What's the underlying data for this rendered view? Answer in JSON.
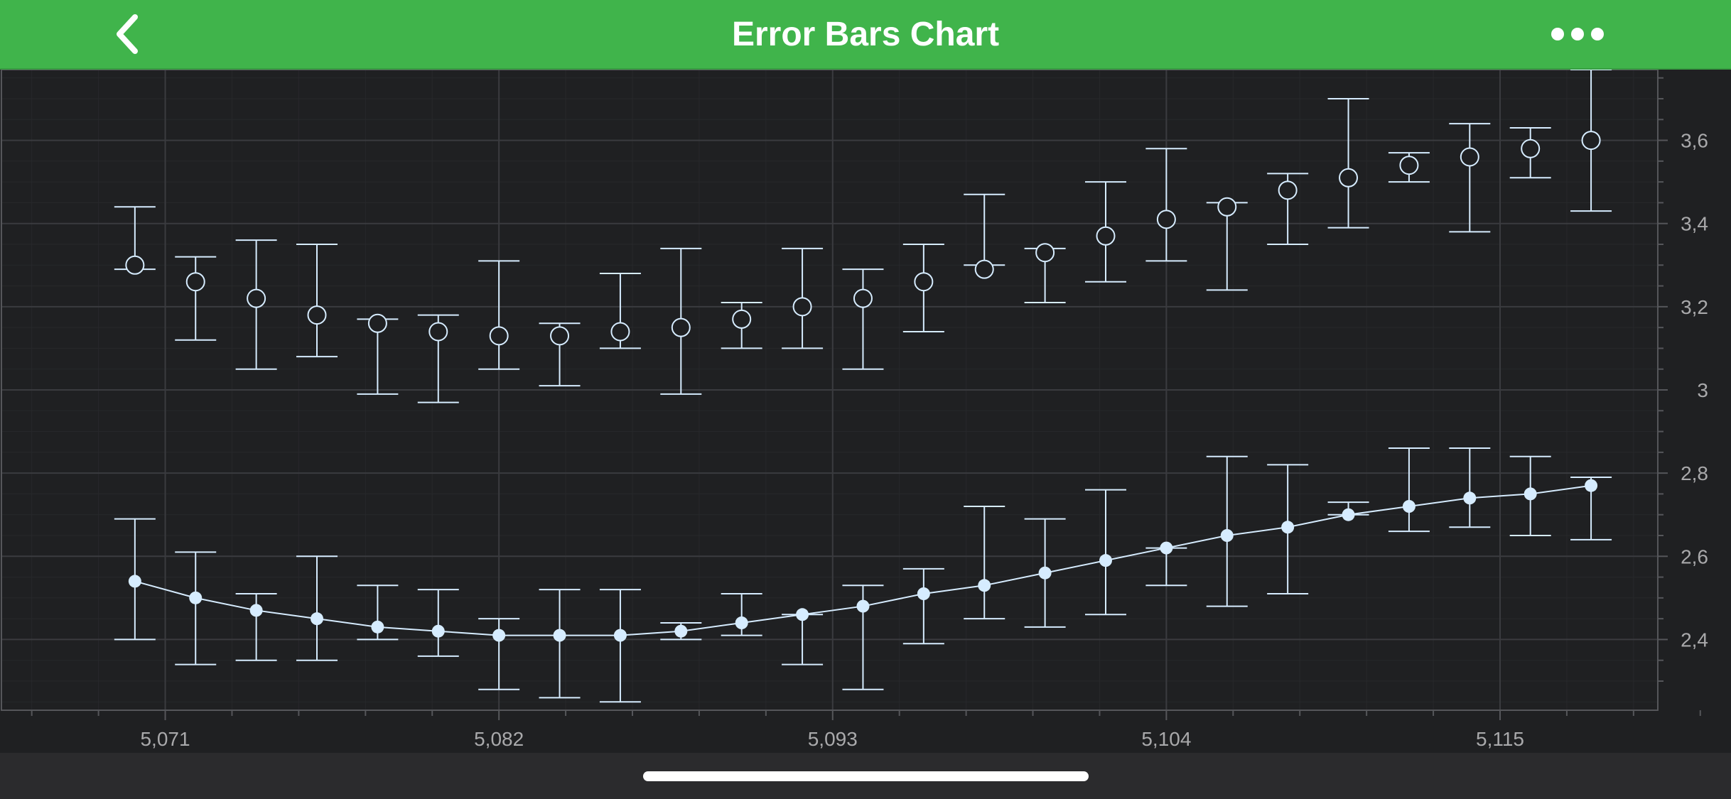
{
  "header": {
    "title": "Error Bars Chart",
    "back_icon": "chevron-left-icon",
    "more_icon": "more-horizontal-icon"
  },
  "colors": {
    "header_bg": "#40b44b",
    "plot_bg": "#1f2022",
    "series": "#d6ecff",
    "tick_label": "#a9a9ab"
  },
  "chart_data": {
    "type": "scatter",
    "title": "",
    "xlabel": "",
    "ylabel": "",
    "xlim": [
      5065.6,
      5120.2
    ],
    "ylim": [
      2.23,
      3.77
    ],
    "x_ticks": [
      5071,
      5082,
      5093,
      5104,
      5115
    ],
    "x_tick_labels": [
      "5,071",
      "5,082",
      "5,093",
      "5,104",
      "5,115"
    ],
    "y_ticks": [
      2.4,
      2.6,
      2.8,
      3.0,
      3.2,
      3.4,
      3.6
    ],
    "y_tick_labels": [
      "2,4",
      "2,6",
      "2,8",
      "3",
      "3,2",
      "3,4",
      "3,6"
    ],
    "y_axis_position": "right",
    "grid": true,
    "x": [
      5070,
      5072,
      5074,
      5076,
      5078,
      5080,
      5082,
      5084,
      5086,
      5088,
      5090,
      5092,
      5094,
      5096,
      5098,
      5100,
      5102,
      5104,
      5106,
      5108,
      5110,
      5112,
      5114,
      5116,
      5118
    ],
    "series": [
      {
        "marker": "open-circle",
        "line": false,
        "y": [
          3.3,
          3.26,
          3.22,
          3.18,
          3.16,
          3.14,
          3.13,
          3.13,
          3.14,
          3.15,
          3.17,
          3.2,
          3.22,
          3.26,
          3.29,
          3.33,
          3.37,
          3.41,
          3.44,
          3.48,
          3.51,
          3.54,
          3.56,
          3.58,
          3.6
        ],
        "high": [
          3.44,
          3.32,
          3.36,
          3.35,
          3.17,
          3.18,
          3.31,
          3.16,
          3.28,
          3.34,
          3.21,
          3.34,
          3.29,
          3.35,
          3.47,
          3.34,
          3.5,
          3.58,
          3.45,
          3.52,
          3.7,
          3.57,
          3.64,
          3.63,
          3.77
        ],
        "low": [
          3.29,
          3.12,
          3.05,
          3.08,
          2.99,
          2.97,
          3.05,
          3.01,
          3.1,
          2.99,
          3.1,
          3.1,
          3.05,
          3.14,
          3.3,
          3.21,
          3.26,
          3.31,
          3.24,
          3.35,
          3.39,
          3.5,
          3.38,
          3.51,
          3.43
        ]
      },
      {
        "marker": "filled-circle",
        "line": true,
        "y": [
          2.54,
          2.5,
          2.47,
          2.45,
          2.43,
          2.42,
          2.41,
          2.41,
          2.41,
          2.42,
          2.44,
          2.46,
          2.48,
          2.51,
          2.53,
          2.56,
          2.59,
          2.62,
          2.65,
          2.67,
          2.7,
          2.72,
          2.74,
          2.75,
          2.77
        ],
        "high": [
          2.69,
          2.61,
          2.51,
          2.6,
          2.53,
          2.52,
          2.45,
          2.52,
          2.52,
          2.44,
          2.51,
          2.46,
          2.53,
          2.57,
          2.72,
          2.69,
          2.76,
          2.62,
          2.84,
          2.82,
          2.73,
          2.86,
          2.86,
          2.84,
          2.79
        ],
        "low": [
          2.4,
          2.34,
          2.35,
          2.35,
          2.4,
          2.36,
          2.28,
          2.26,
          2.25,
          2.4,
          2.41,
          2.34,
          2.28,
          2.39,
          2.45,
          2.43,
          2.46,
          2.53,
          2.48,
          2.51,
          2.7,
          2.66,
          2.67,
          2.65,
          2.64
        ]
      }
    ]
  }
}
